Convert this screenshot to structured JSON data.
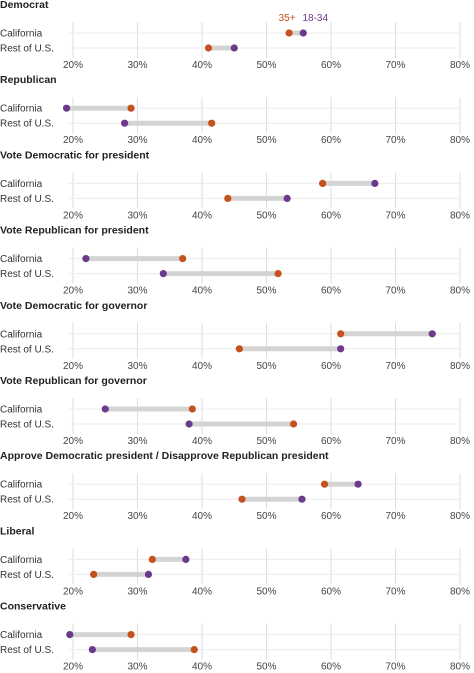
{
  "colors": {
    "age_35_plus": "#c4511e",
    "age_18_34": "#6b3a8c",
    "connector": "#d4d4d4",
    "grid": "#dedede",
    "text": "#333333"
  },
  "chart_data": {
    "type": "dumbbell",
    "xlim": [
      20,
      80
    ],
    "x_ticks": [
      20,
      30,
      40,
      50,
      60,
      70,
      80
    ],
    "x_tick_suffix": "%",
    "rows": [
      "California",
      "Rest of U.S."
    ],
    "legend": [
      {
        "key": "age_35_plus",
        "name": "35+"
      },
      {
        "key": "age_18_34",
        "name": "18-34"
      }
    ],
    "panels": [
      {
        "title": "Democrat",
        "data": [
          {
            "row": "California",
            "age_35_plus": 53.5,
            "age_18_34": 55.7
          },
          {
            "row": "Rest of U.S.",
            "age_35_plus": 41.0,
            "age_18_34": 45.0
          }
        ]
      },
      {
        "title": "Republican",
        "data": [
          {
            "row": "California",
            "age_35_plus": 29.0,
            "age_18_34": 19.0
          },
          {
            "row": "Rest of U.S.",
            "age_35_plus": 41.5,
            "age_18_34": 28.0
          }
        ]
      },
      {
        "title": "Vote Democratic for president",
        "data": [
          {
            "row": "California",
            "age_35_plus": 58.7,
            "age_18_34": 66.8
          },
          {
            "row": "Rest of U.S.",
            "age_35_plus": 44.0,
            "age_18_34": 53.2
          }
        ]
      },
      {
        "title": "Vote Republican for president",
        "data": [
          {
            "row": "California",
            "age_35_plus": 37.0,
            "age_18_34": 22.0
          },
          {
            "row": "Rest of U.S.",
            "age_35_plus": 51.8,
            "age_18_34": 34.0
          }
        ]
      },
      {
        "title": "Vote Democratic for governor",
        "data": [
          {
            "row": "California",
            "age_35_plus": 61.5,
            "age_18_34": 75.7
          },
          {
            "row": "Rest of U.S.",
            "age_35_plus": 45.8,
            "age_18_34": 61.5
          }
        ]
      },
      {
        "title": "Vote Republican for governor",
        "data": [
          {
            "row": "California",
            "age_35_plus": 38.5,
            "age_18_34": 25.0
          },
          {
            "row": "Rest of U.S.",
            "age_35_plus": 54.2,
            "age_18_34": 38.0
          }
        ]
      },
      {
        "title": "Approve Democratic president / Disapprove Republican president",
        "data": [
          {
            "row": "California",
            "age_35_plus": 59.0,
            "age_18_34": 64.2
          },
          {
            "row": "Rest of U.S.",
            "age_35_plus": 46.2,
            "age_18_34": 55.5
          }
        ]
      },
      {
        "title": "Liberal",
        "data": [
          {
            "row": "California",
            "age_35_plus": 32.3,
            "age_18_34": 37.5
          },
          {
            "row": "Rest of U.S.",
            "age_35_plus": 23.2,
            "age_18_34": 31.7
          }
        ]
      },
      {
        "title": "Conservative",
        "data": [
          {
            "row": "California",
            "age_35_plus": 29.0,
            "age_18_34": 19.5
          },
          {
            "row": "Rest of U.S.",
            "age_35_plus": 38.8,
            "age_18_34": 23.0
          }
        ]
      }
    ]
  }
}
